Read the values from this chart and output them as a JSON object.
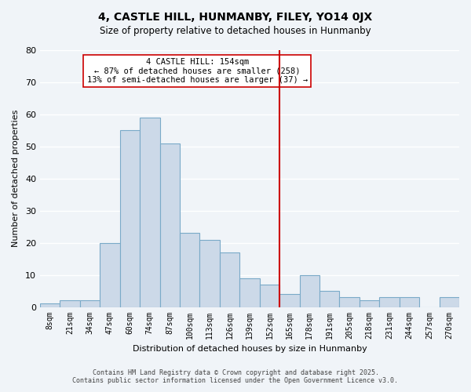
{
  "title": "4, CASTLE HILL, HUNMANBY, FILEY, YO14 0JX",
  "subtitle": "Size of property relative to detached houses in Hunmanby",
  "xlabel": "Distribution of detached houses by size in Hunmanby",
  "ylabel": "Number of detached properties",
  "bar_labels": [
    "8sqm",
    "21sqm",
    "34sqm",
    "47sqm",
    "60sqm",
    "74sqm",
    "87sqm",
    "100sqm",
    "113sqm",
    "126sqm",
    "139sqm",
    "152sqm",
    "165sqm",
    "178sqm",
    "191sqm",
    "205sqm",
    "218sqm",
    "231sqm",
    "244sqm",
    "257sqm",
    "270sqm"
  ],
  "bar_values": [
    1,
    2,
    2,
    20,
    55,
    59,
    51,
    23,
    21,
    17,
    9,
    7,
    4,
    10,
    5,
    3,
    2,
    3,
    3,
    0,
    3
  ],
  "bar_color": "#ccd9e8",
  "bar_edge_color": "#7aaac8",
  "vline_x": 11.5,
  "vline_color": "#cc0000",
  "ylim": [
    0,
    80
  ],
  "yticks": [
    0,
    10,
    20,
    30,
    40,
    50,
    60,
    70,
    80
  ],
  "annotation_text": "4 CASTLE HILL: 154sqm\n← 87% of detached houses are smaller (258)\n13% of semi-detached houses are larger (37) →",
  "footer1": "Contains HM Land Registry data © Crown copyright and database right 2025.",
  "footer2": "Contains public sector information licensed under the Open Government Licence v3.0.",
  "background_color": "#f0f4f8",
  "grid_color": "#ffffff"
}
